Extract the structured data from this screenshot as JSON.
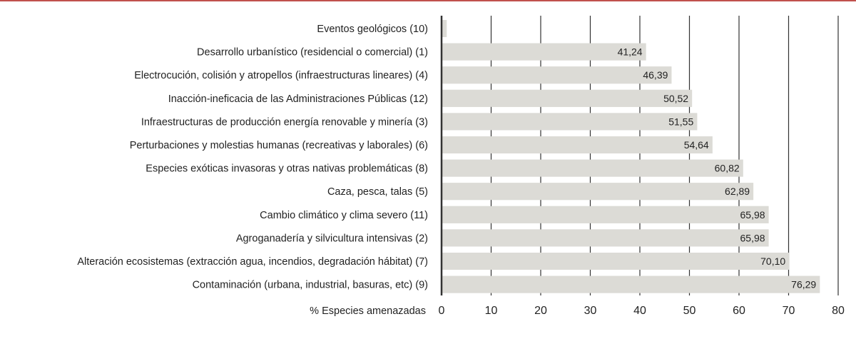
{
  "chart_data": {
    "type": "bar",
    "orientation": "horizontal",
    "categories": [
      "Eventos geológicos (10)",
      "Desarrollo urbanístico (residencial o comercial) (1)",
      "Electrocución, colisión y atropellos (infraestructuras lineares) (4)",
      "Inacción-ineficacia de las Administraciones Públicas (12)",
      "Infraestructuras de producción energía renovable y minería (3)",
      "Perturbaciones y molestias humanas (recreativas y laborales) (6)",
      "Especies exóticas invasoras y otras nativas problemáticas (8)",
      "Caza, pesca, talas (5)",
      "Cambio climático y clima severo (11)",
      "Agroganadería y silvicultura intensivas (2)",
      "Alteración ecosistemas (extracción agua, incendios, degradación hábitat) (7)",
      "Contaminación (urbana, industrial, basuras, etc) (9)"
    ],
    "values": [
      1.03,
      41.24,
      46.39,
      50.52,
      51.55,
      54.64,
      60.82,
      62.89,
      65.98,
      65.98,
      70.1,
      76.29
    ],
    "data_labels": [
      "",
      "41,24",
      "46,39",
      "50,52",
      "51,55",
      "54,64",
      "60,82",
      "62,89",
      "65,98",
      "65,98",
      "70,10",
      "76,29"
    ],
    "xlabel": "% Especies amenazadas",
    "xlim": [
      0,
      80
    ],
    "xticks": [
      "0",
      "10",
      "20",
      "30",
      "40",
      "50",
      "60",
      "70",
      "80"
    ],
    "grid": "vertical",
    "colors": {
      "bar": "#dcdbd6",
      "grid": "#333333",
      "top_rule": "#c0504d"
    }
  }
}
